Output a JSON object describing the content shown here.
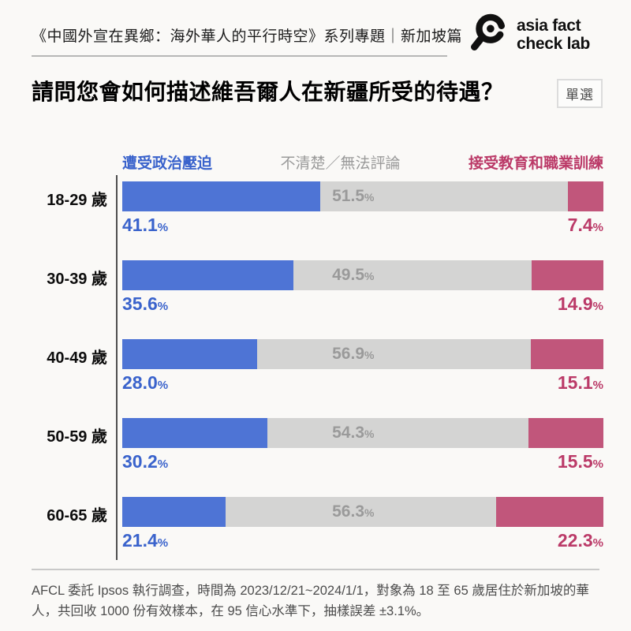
{
  "header": {
    "series_title": "《中國外宣在異鄉：海外華人的平行時空》系列專題｜新加坡篇",
    "logo_line1": "asia fact",
    "logo_line2": "check lab"
  },
  "question": {
    "title": "請問您會如何描述維吾爾人在新疆所受的待遇？",
    "badge": "單選"
  },
  "colors": {
    "background": "#faf9f7",
    "blue_bar": "#4e74d5",
    "blue_text": "#3a63cc",
    "gray_bar": "#d4d4d3",
    "gray_text": "#9a9a9a",
    "pink_bar": "#c1567b",
    "pink_text": "#bb3a68",
    "axis": "#4f4f4f"
  },
  "chart_data": {
    "type": "bar",
    "stacked": true,
    "orientation": "horizontal",
    "value_suffix": "%",
    "categories": [
      "18-29 歲",
      "30-39 歲",
      "40-49 歲",
      "50-59 歲",
      "60-65 歲"
    ],
    "series": [
      {
        "name": "遭受政治壓迫",
        "color": "#4e74d5",
        "text_color": "#3a63cc",
        "values": [
          41.1,
          35.6,
          28.0,
          30.2,
          21.4
        ]
      },
      {
        "name": "不清楚／無法評論",
        "color": "#d4d4d3",
        "text_color": "#9a9a9a",
        "values": [
          51.5,
          49.5,
          56.9,
          54.3,
          56.3
        ]
      },
      {
        "name": "接受教育和職業訓練",
        "color": "#c1567b",
        "text_color": "#bb3a68",
        "values": [
          7.4,
          14.9,
          15.1,
          15.5,
          22.3
        ]
      }
    ],
    "xlim": [
      0,
      100
    ],
    "grid": false,
    "legend_position": "top"
  },
  "footnote": {
    "text": "AFCL 委託 Ipsos 執行調查，時間為 2023/12/21~2024/1/1，對象為 18 至 65 歲居住於新加坡的華人，共回收 1000 份有效樣本，在 95 信心水準下，抽樣誤差 ±3.1%。"
  }
}
